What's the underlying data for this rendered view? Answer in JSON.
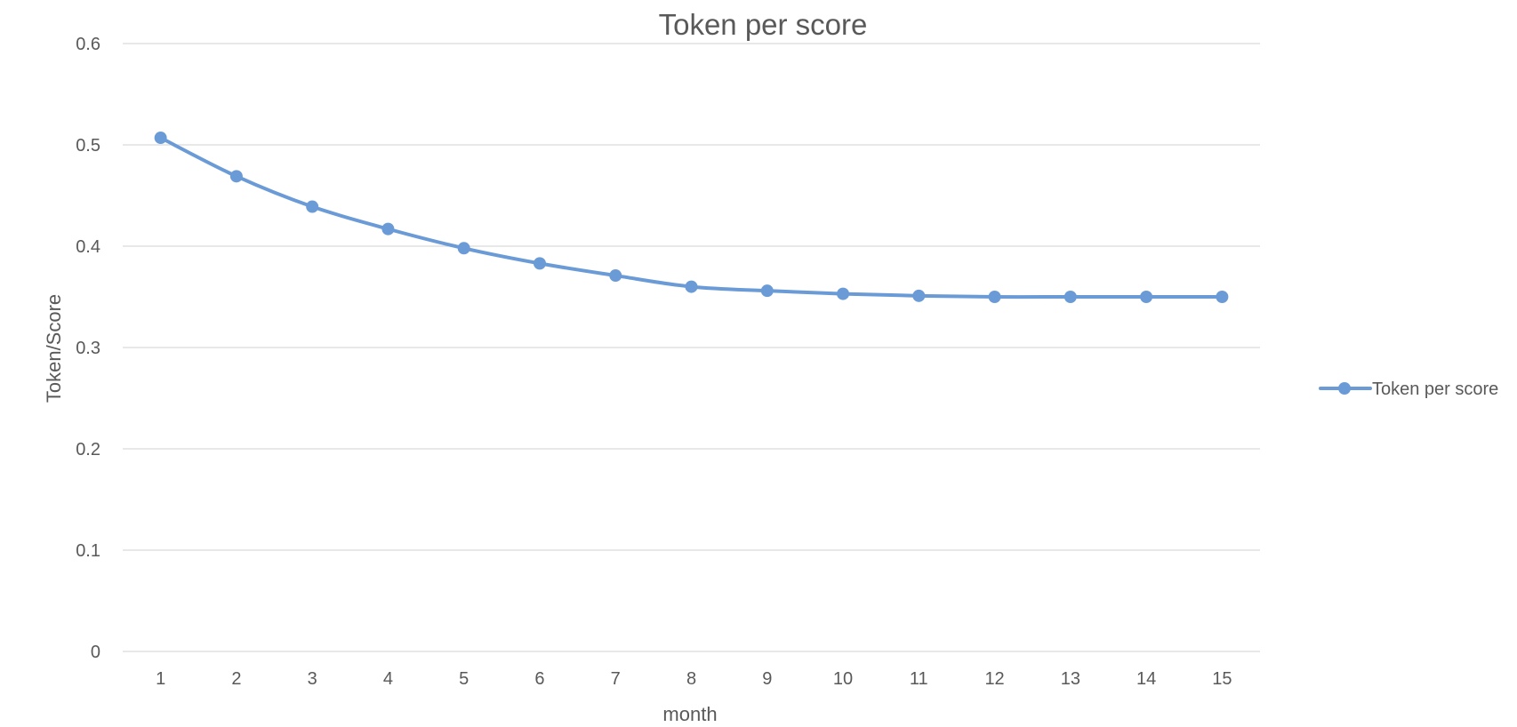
{
  "chart_data": {
    "type": "line",
    "title": "Token per score",
    "xlabel": "month",
    "ylabel": "Token/Score",
    "categories": [
      "1",
      "2",
      "3",
      "4",
      "5",
      "6",
      "7",
      "8",
      "9",
      "10",
      "11",
      "12",
      "13",
      "14",
      "15"
    ],
    "series": [
      {
        "name": "Token per score",
        "color": "#6b9bd6",
        "values": [
          0.507,
          0.469,
          0.439,
          0.417,
          0.398,
          0.383,
          0.371,
          0.36,
          0.356,
          0.353,
          0.351,
          0.35,
          0.35,
          0.35,
          0.35
        ]
      }
    ],
    "ylim": [
      0,
      0.6
    ],
    "yticks": [
      "0",
      "0.1",
      "0.2",
      "0.3",
      "0.4",
      "0.5",
      "0.6"
    ],
    "grid": true,
    "legend_position": "right",
    "marker": "circle"
  }
}
